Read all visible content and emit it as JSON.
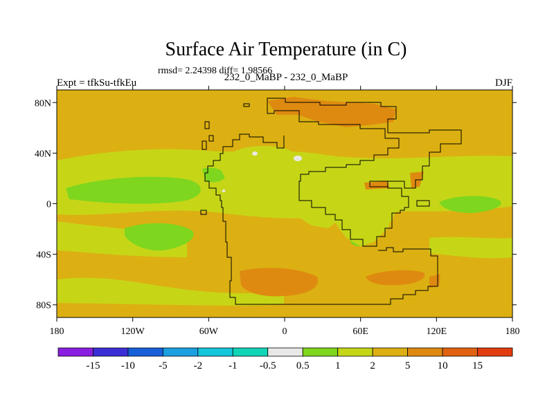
{
  "title": "Surface Air Temperature (in C)",
  "stats": "rmsd= 2.24398 diff= 1.98566",
  "left_label": "Expt = tfkSu-tfkEu",
  "center_label": "232_0_MaBP - 232_0_MaBP",
  "right_label": "DJF",
  "map": {
    "lon_range": [
      -180,
      180
    ],
    "lat_range": [
      -90,
      90
    ],
    "lat_ticks": [
      {
        "value": 80,
        "label": "80N"
      },
      {
        "value": 40,
        "label": "40N"
      },
      {
        "value": 0,
        "label": "0"
      },
      {
        "value": -40,
        "label": "40S"
      },
      {
        "value": -80,
        "label": "80S"
      }
    ],
    "lon_ticks": [
      {
        "value": -180,
        "label": "180"
      },
      {
        "value": -120,
        "label": "120W"
      },
      {
        "value": -60,
        "label": "60W"
      },
      {
        "value": 0,
        "label": "0"
      },
      {
        "value": 60,
        "label": "60E"
      },
      {
        "value": 120,
        "label": "120E"
      },
      {
        "value": 180,
        "label": "180"
      }
    ]
  },
  "colorbar": {
    "colors": [
      "#8a1ee0",
      "#3a2fd6",
      "#1760d8",
      "#1a9fe0",
      "#16c6dc",
      "#12d4b8",
      "#e8e8e8",
      "#7ed61e",
      "#c6d617",
      "#dcb012",
      "#de8a10",
      "#e06210",
      "#e33c0f"
    ],
    "labels": [
      "-15",
      "-10",
      "-5",
      "-2",
      "-1",
      "-0.5",
      "0.5",
      "1",
      "2",
      "5",
      "10",
      "15"
    ]
  }
}
